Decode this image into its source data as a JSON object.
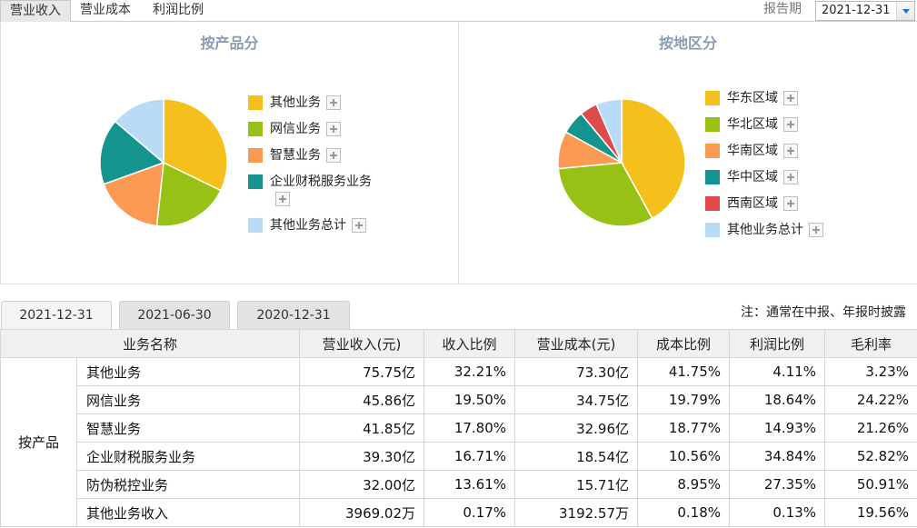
{
  "top_tabs": [
    "营业收入",
    "营业成本",
    "利润比例"
  ],
  "report_period": {
    "label": "报告期",
    "value": "2021-12-31"
  },
  "charts": [
    {
      "title": "按产品分",
      "legend": [
        {
          "label": "其他业务",
          "color": "#f5bf1c"
        },
        {
          "label": "网信业务",
          "color": "#97c114"
        },
        {
          "label": "智慧业务",
          "color": "#fb9a52"
        },
        {
          "label": "企业财税服务业务",
          "color": "#14938f"
        },
        {
          "label": "其他业务总计",
          "color": "#b9dbf7"
        }
      ],
      "slices": [
        {
          "value": 32.21,
          "color": "#f5bf1c"
        },
        {
          "value": 19.5,
          "color": "#97c114"
        },
        {
          "value": 17.8,
          "color": "#fb9a52"
        },
        {
          "value": 16.71,
          "color": "#14938f"
        },
        {
          "value": 13.78,
          "color": "#b9dbf7"
        }
      ]
    },
    {
      "title": "按地区分",
      "legend": [
        {
          "label": "华东区域",
          "color": "#f5bf1c"
        },
        {
          "label": "华北区域",
          "color": "#97c114"
        },
        {
          "label": "华南区域",
          "color": "#fb9a52"
        },
        {
          "label": "华中区域",
          "color": "#14938f"
        },
        {
          "label": "西南区域",
          "color": "#dd4b4b"
        },
        {
          "label": "其他业务总计",
          "color": "#b9dbf7"
        }
      ],
      "slices": [
        {
          "value": 42.0,
          "color": "#f5bf1c"
        },
        {
          "value": 31.5,
          "color": "#97c114"
        },
        {
          "value": 9.5,
          "color": "#fb9a52"
        },
        {
          "value": 6.0,
          "color": "#14938f"
        },
        {
          "value": 4.5,
          "color": "#dd4b4b"
        },
        {
          "value": 6.5,
          "color": "#b9dbf7"
        }
      ]
    }
  ],
  "date_tabs": [
    "2021-12-31",
    "2021-06-30",
    "2020-12-31"
  ],
  "note": "注：通常在中报、年报时披露",
  "table": {
    "headers": [
      "业务名称",
      "营业收入(元)",
      "收入比例",
      "营业成本(元)",
      "成本比例",
      "利润比例",
      "毛利率"
    ],
    "group": "按产品",
    "rows": [
      [
        "其他业务",
        "75.75亿",
        "32.21%",
        "73.30亿",
        "41.75%",
        "4.11%",
        "3.23%"
      ],
      [
        "网信业务",
        "45.86亿",
        "19.50%",
        "34.75亿",
        "19.79%",
        "18.64%",
        "24.22%"
      ],
      [
        "智慧业务",
        "41.85亿",
        "17.80%",
        "32.96亿",
        "18.77%",
        "14.93%",
        "21.26%"
      ],
      [
        "企业财税服务业务",
        "39.30亿",
        "16.71%",
        "18.54亿",
        "10.56%",
        "34.84%",
        "52.82%"
      ],
      [
        "防伪税控业务",
        "32.00亿",
        "13.61%",
        "15.71亿",
        "8.95%",
        "27.35%",
        "50.91%"
      ],
      [
        "其他业务收入",
        "3969.02万",
        "0.17%",
        "3192.57万",
        "0.18%",
        "0.13%",
        "19.56%"
      ]
    ]
  }
}
